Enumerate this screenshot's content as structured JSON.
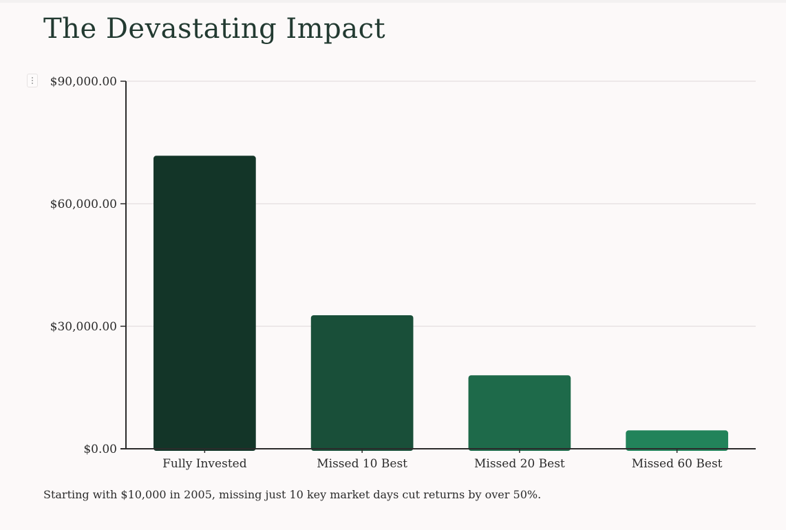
{
  "page": {
    "title": "The Devastating Impact",
    "caption": "Starting with $10,000 in 2005, missing just 10 key market days cut returns by over 50%."
  },
  "menu": {
    "icon": "vertical-dots-icon"
  },
  "chart_data": {
    "type": "bar",
    "title": "",
    "xlabel": "",
    "ylabel": "",
    "categories": [
      "Fully Invested",
      "Missed 10 Best",
      "Missed 20 Best",
      "Missed 60 Best"
    ],
    "values": [
      71750,
      32700,
      18000,
      4500
    ],
    "ylim": [
      0,
      90000
    ],
    "yticks": [
      0,
      30000,
      60000,
      90000
    ],
    "ytick_labels": [
      "$0.00",
      "$30,000.00",
      "$60,000.00",
      "$90,000.00"
    ],
    "grid": true,
    "legend": "none",
    "bar_colors": [
      "#133528",
      "#194f39",
      "#1e6a4a",
      "#22835a"
    ],
    "axis_color": "#2b2b2b",
    "grid_color": "#e4dfe0"
  }
}
